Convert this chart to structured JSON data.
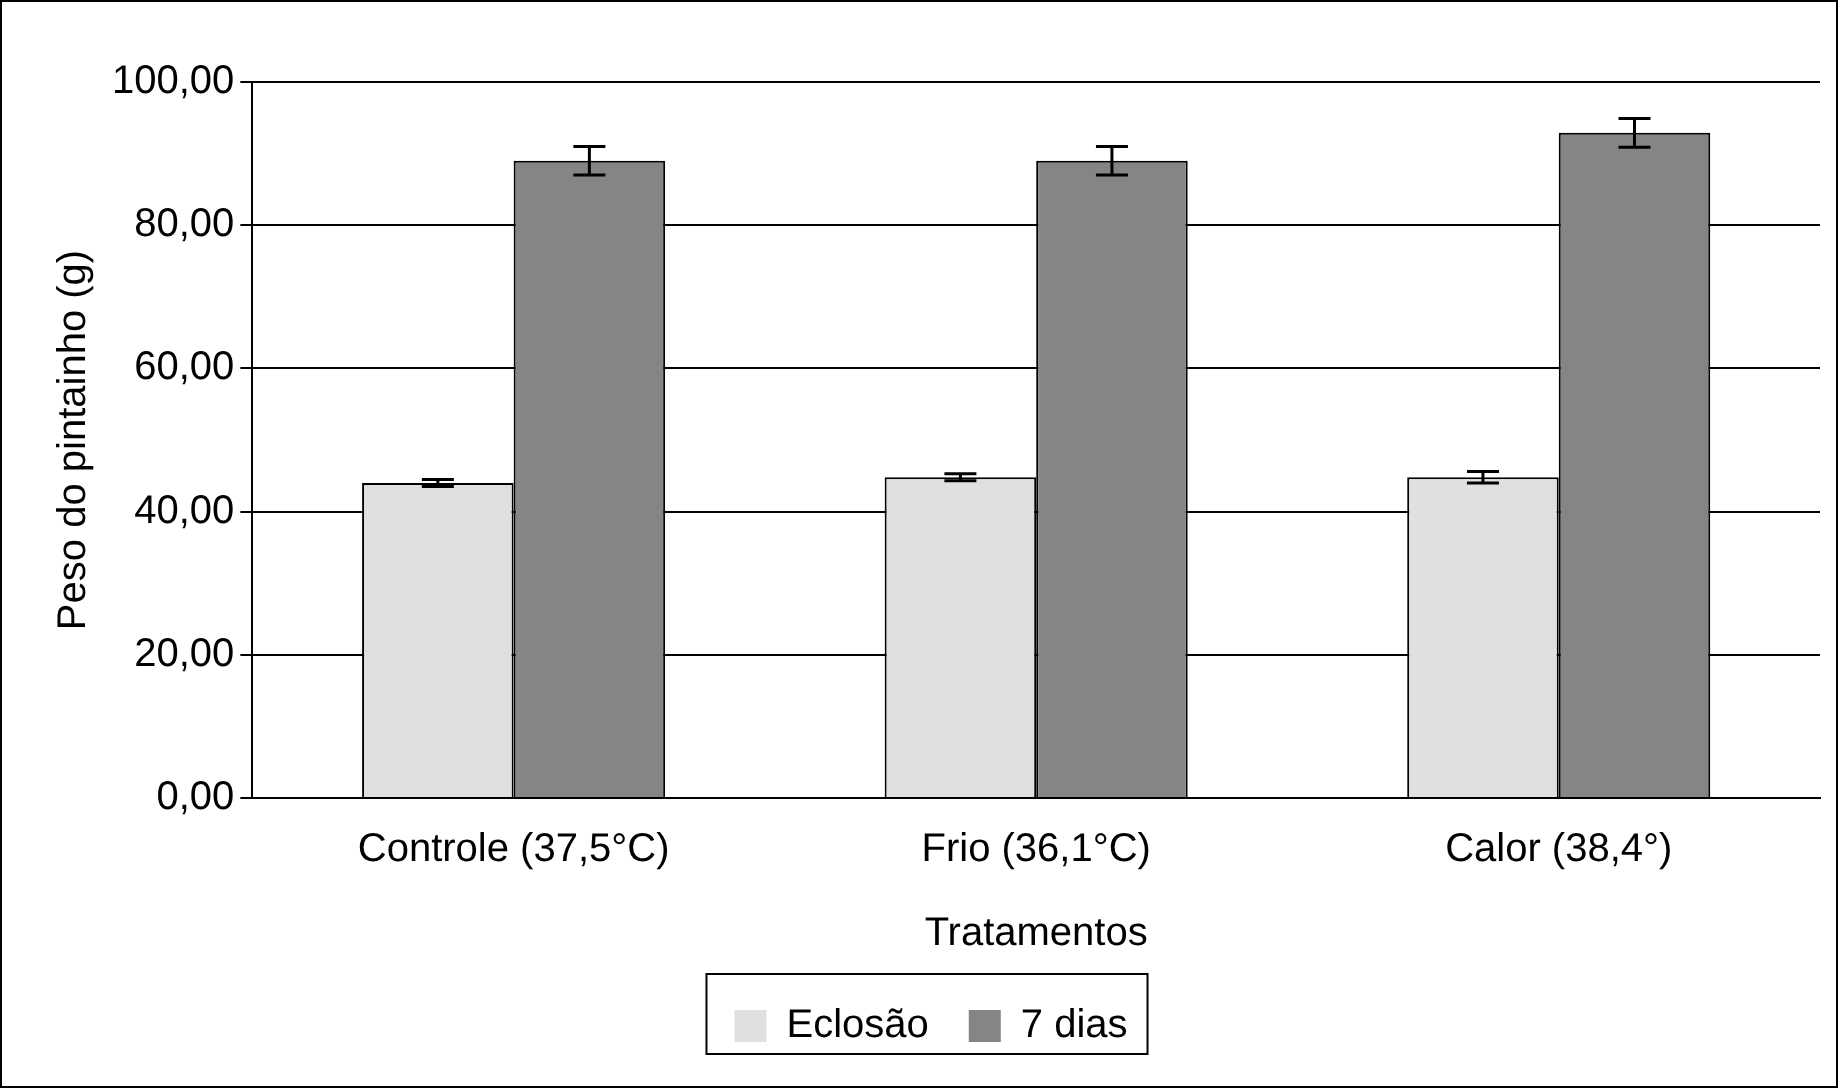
{
  "chart_data": {
    "type": "bar",
    "xlabel": "Tratamentos",
    "ylabel": "Peso do pintainho (g)",
    "categories": [
      "Controle (37,5°C)",
      "Frio (36,1°C)",
      "Calor (38,4°)"
    ],
    "series": [
      {
        "name": "Eclosão",
        "color": "#e0e0e0",
        "values": [
          44.0,
          44.8,
          44.8
        ],
        "errors": [
          0.5,
          0.5,
          0.8
        ]
      },
      {
        "name": "7 dias",
        "color": "#858585",
        "values": [
          89.0,
          89.0,
          92.9
        ],
        "errors": [
          2.0,
          2.0,
          2.0
        ]
      }
    ],
    "ylim": [
      0,
      100
    ],
    "yticks": [
      {
        "value": 0,
        "label": "0,00"
      },
      {
        "value": 20,
        "label": "20,00"
      },
      {
        "value": 40,
        "label": "40,00"
      },
      {
        "value": 60,
        "label": "60,00"
      },
      {
        "value": 80,
        "label": "80,00"
      },
      {
        "value": 100,
        "label": "100,00"
      }
    ],
    "grid": "y",
    "legend": "bottom"
  }
}
